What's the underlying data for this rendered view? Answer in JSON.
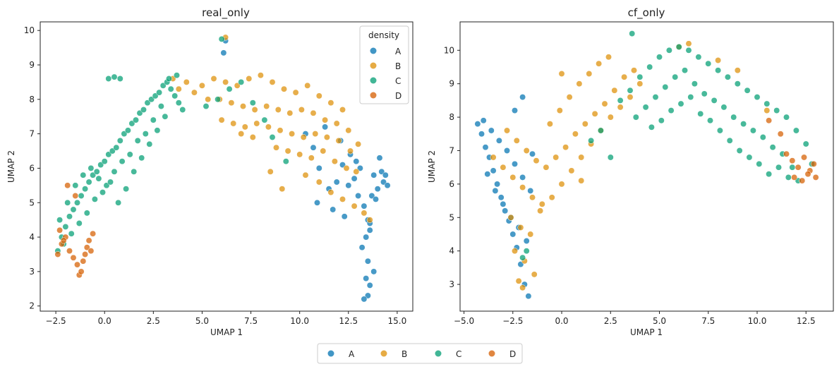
{
  "palette": {
    "A": "#0173b2",
    "B": "#de8f05",
    "C": "#029e73",
    "D": "#d55e00"
  },
  "legend": {
    "title": "density",
    "placement": "upper-right (left panel)",
    "entries": [
      "A",
      "B",
      "C",
      "D"
    ]
  },
  "figure_legend": {
    "placement": "bottom-center",
    "entries": [
      "A",
      "B",
      "C",
      "D"
    ]
  },
  "chart_data": [
    {
      "type": "scatter",
      "title": "real_only",
      "xlabel": "UMAP 1",
      "ylabel": "UMAP 2",
      "xlim": [
        -3.3,
        15.8
      ],
      "ylim": [
        1.85,
        10.25
      ],
      "xticks": [
        -2.5,
        0.0,
        2.5,
        5.0,
        7.5,
        10.0,
        12.5,
        15.0
      ],
      "xtick_labels": [
        "−2.5",
        "0.0",
        "2.5",
        "5.0",
        "7.5",
        "10.0",
        "12.5",
        "15.0"
      ],
      "yticks": [
        2,
        3,
        4,
        5,
        6,
        7,
        8,
        9,
        10
      ],
      "ytick_labels": [
        "2",
        "3",
        "4",
        "5",
        "6",
        "7",
        "8",
        "9",
        "10"
      ],
      "grid": false,
      "legend_placement": "top-right",
      "series": [
        {
          "name": "A",
          "x": [
            13.5,
            13.6,
            13.4,
            13.5,
            13.2,
            13.4,
            13.6,
            13.5,
            13.3,
            13.7,
            14.0,
            14.3,
            14.5,
            13.8,
            14.2,
            13.1,
            12.8,
            12.5,
            12.9,
            12.2,
            11.9,
            11.5,
            11.0,
            10.7,
            10.3,
            11.3,
            12.1,
            12.6,
            13.0,
            13.9,
            14.1,
            14.4,
            13.6,
            12.3,
            11.7,
            10.9,
            13.3,
            13.8,
            6.1,
            6.2
          ],
          "y": [
            2.3,
            2.6,
            2.8,
            3.3,
            3.7,
            4.0,
            4.2,
            4.5,
            4.9,
            5.2,
            5.4,
            5.6,
            5.5,
            5.8,
            5.9,
            6.0,
            5.7,
            5.5,
            6.2,
            6.1,
            5.6,
            5.4,
            6.0,
            6.6,
            7.0,
            7.2,
            6.8,
            6.4,
            5.2,
            5.1,
            6.3,
            5.8,
            4.4,
            4.6,
            4.8,
            5.0,
            2.2,
            3.0,
            9.35,
            9.7
          ]
        },
        {
          "name": "B",
          "x": [
            5.0,
            5.6,
            6.2,
            6.8,
            7.4,
            8.0,
            8.6,
            9.2,
            9.8,
            10.4,
            11.0,
            11.6,
            12.2,
            5.3,
            5.9,
            6.5,
            7.1,
            7.7,
            8.3,
            8.9,
            9.5,
            10.1,
            10.7,
            11.3,
            11.9,
            12.5,
            6.0,
            6.6,
            7.2,
            7.8,
            8.4,
            9.0,
            9.6,
            10.2,
            10.8,
            11.4,
            12.0,
            12.6,
            13.0,
            8.8,
            9.4,
            10.0,
            10.6,
            11.2,
            11.8,
            12.4,
            12.9,
            10.3,
            11.0,
            11.6,
            12.2,
            12.8,
            13.3,
            13.6,
            4.2,
            4.6,
            3.8,
            3.5,
            6.2,
            8.5,
            9.1,
            7.0,
            7.6
          ],
          "y": [
            8.4,
            8.6,
            8.5,
            8.4,
            8.6,
            8.7,
            8.5,
            8.3,
            8.2,
            8.4,
            8.1,
            7.9,
            7.7,
            8.0,
            8.0,
            7.9,
            7.8,
            7.7,
            7.8,
            7.7,
            7.6,
            7.7,
            7.6,
            7.4,
            7.3,
            7.1,
            7.4,
            7.3,
            7.2,
            7.3,
            7.2,
            7.1,
            7.0,
            6.9,
            7.0,
            6.9,
            6.8,
            6.5,
            6.7,
            6.6,
            6.5,
            6.4,
            6.3,
            6.5,
            6.2,
            6.0,
            5.9,
            5.8,
            5.6,
            5.3,
            5.1,
            4.9,
            4.7,
            4.5,
            8.5,
            8.2,
            8.3,
            8.6,
            9.8,
            5.9,
            5.4,
            7.0,
            6.9
          ]
        },
        {
          "name": "C",
          "x": [
            -2.4,
            -2.2,
            -2.0,
            -1.8,
            -1.6,
            -1.4,
            -1.2,
            -1.0,
            -0.8,
            -0.6,
            -0.4,
            -0.2,
            0.0,
            0.2,
            0.4,
            0.6,
            0.8,
            1.0,
            1.2,
            1.4,
            1.6,
            1.8,
            2.0,
            2.2,
            2.4,
            2.6,
            2.8,
            3.0,
            3.2,
            3.4,
            3.6,
            3.8,
            4.0,
            -2.3,
            -1.9,
            -1.5,
            -1.1,
            -0.7,
            -0.3,
            0.1,
            0.5,
            0.9,
            1.3,
            1.7,
            2.1,
            2.5,
            2.9,
            3.3,
            3.7,
            -2.1,
            -1.7,
            -1.3,
            -0.9,
            -0.5,
            -0.1,
            0.3,
            0.7,
            1.1,
            1.5,
            1.9,
            2.3,
            2.7,
            3.1,
            0.2,
            0.5,
            0.8,
            5.2,
            5.8,
            6.4,
            7.0,
            7.6,
            8.2,
            6.0,
            8.6,
            9.3
          ],
          "y": [
            3.6,
            4.0,
            4.3,
            4.6,
            4.8,
            5.0,
            5.2,
            5.4,
            5.6,
            5.8,
            5.9,
            6.1,
            6.2,
            6.4,
            6.5,
            6.6,
            6.8,
            7.0,
            7.1,
            7.3,
            7.4,
            7.6,
            7.7,
            7.9,
            8.0,
            8.1,
            8.2,
            8.4,
            8.5,
            8.3,
            8.1,
            7.9,
            7.7,
            4.5,
            5.0,
            5.5,
            5.8,
            6.0,
            5.7,
            5.5,
            5.9,
            6.2,
            6.4,
            6.8,
            7.0,
            7.4,
            7.8,
            8.6,
            8.7,
            3.8,
            4.1,
            4.4,
            4.7,
            5.1,
            5.3,
            5.6,
            5.0,
            5.4,
            5.9,
            6.3,
            6.7,
            7.1,
            7.5,
            8.6,
            8.65,
            8.6,
            7.8,
            8.0,
            8.3,
            8.5,
            7.9,
            7.4,
            9.75,
            6.9,
            6.2
          ]
        },
        {
          "name": "D",
          "x": [
            -2.4,
            -2.2,
            -2.0,
            -1.8,
            -1.6,
            -1.4,
            -1.3,
            -1.2,
            -1.1,
            -1.0,
            -0.9,
            -0.8,
            -0.7,
            -1.9,
            -1.5,
            -2.3,
            -2.1,
            -0.6
          ],
          "y": [
            3.5,
            3.8,
            4.0,
            3.6,
            3.4,
            3.2,
            2.9,
            3.0,
            3.3,
            3.5,
            3.7,
            3.9,
            3.6,
            5.5,
            5.2,
            4.2,
            3.9,
            4.1
          ]
        }
      ]
    },
    {
      "type": "scatter",
      "title": "cf_only",
      "xlabel": "UMAP 1",
      "ylabel": "UMAP 2",
      "xlim": [
        -5.2,
        13.9
      ],
      "ylim": [
        2.2,
        10.85
      ],
      "xticks": [
        -5.0,
        -2.5,
        0.0,
        2.5,
        5.0,
        7.5,
        10.0,
        12.5
      ],
      "xtick_labels": [
        "−5.0",
        "−2.5",
        "0.0",
        "2.5",
        "5.0",
        "7.5",
        "10.0",
        "12.5"
      ],
      "yticks": [
        3,
        4,
        5,
        6,
        7,
        8,
        9,
        10
      ],
      "ytick_labels": [
        "3",
        "4",
        "5",
        "6",
        "7",
        "8",
        "9",
        "10"
      ],
      "grid": false,
      "series": [
        {
          "name": "A",
          "x": [
            -4.3,
            -4.1,
            -3.9,
            -3.7,
            -3.5,
            -3.3,
            -3.1,
            -2.9,
            -2.7,
            -2.5,
            -2.3,
            -2.1,
            -1.9,
            -1.7,
            -4.0,
            -3.6,
            -3.2,
            -2.8,
            -2.4,
            -2.0,
            -1.6,
            -3.8,
            -3.4,
            -3.0,
            -2.6,
            -2.2,
            -1.8,
            -2.0,
            -2.4,
            -1.5
          ],
          "y": [
            7.8,
            7.5,
            7.1,
            6.8,
            6.4,
            6.0,
            5.6,
            5.2,
            4.9,
            4.5,
            4.1,
            3.6,
            3.0,
            2.65,
            7.9,
            7.6,
            7.3,
            7.0,
            6.6,
            6.2,
            5.8,
            6.3,
            5.8,
            5.4,
            5.0,
            4.7,
            4.3,
            8.6,
            8.2,
            6.9
          ]
        },
        {
          "name": "B",
          "x": [
            -3.5,
            -3.0,
            -2.5,
            -2.0,
            -1.5,
            -1.0,
            -0.5,
            0.0,
            0.5,
            1.0,
            1.5,
            2.0,
            2.5,
            3.0,
            3.5,
            4.0,
            -2.8,
            -2.3,
            -1.8,
            -1.3,
            -0.8,
            -0.3,
            0.2,
            0.7,
            1.2,
            1.7,
            2.2,
            2.7,
            3.2,
            3.7,
            -2.6,
            -2.1,
            -1.6,
            -1.1,
            -0.6,
            -0.1,
            0.4,
            0.9,
            1.4,
            1.9,
            2.4,
            -2.4,
            -1.9,
            -1.4,
            -2.2,
            -2.0,
            6.0,
            6.5,
            8.0,
            9.0,
            10.5,
            0.0,
            1.0
          ],
          "y": [
            6.8,
            6.5,
            6.2,
            5.9,
            5.6,
            5.4,
            5.6,
            6.0,
            6.4,
            6.8,
            7.2,
            7.6,
            8.0,
            8.3,
            8.6,
            9.0,
            7.6,
            7.3,
            7.0,
            6.7,
            6.5,
            6.8,
            7.1,
            7.5,
            7.8,
            8.1,
            8.4,
            8.8,
            9.2,
            9.4,
            5.0,
            4.7,
            4.5,
            5.2,
            7.8,
            8.2,
            8.6,
            9.0,
            9.3,
            9.6,
            9.8,
            4.0,
            3.7,
            3.3,
            3.1,
            2.9,
            10.1,
            10.2,
            9.7,
            9.4,
            8.2,
            9.3,
            6.1
          ]
        },
        {
          "name": "C",
          "x": [
            3.0,
            3.5,
            4.0,
            4.5,
            5.0,
            5.5,
            6.0,
            6.5,
            7.0,
            7.5,
            8.0,
            8.5,
            9.0,
            9.5,
            10.0,
            10.5,
            11.0,
            11.5,
            12.0,
            12.5,
            3.8,
            4.3,
            4.8,
            5.3,
            5.8,
            6.3,
            6.8,
            7.3,
            7.8,
            8.3,
            8.8,
            9.3,
            9.8,
            10.3,
            10.8,
            11.3,
            11.8,
            4.6,
            5.1,
            5.6,
            6.1,
            6.6,
            7.1,
            7.6,
            8.1,
            8.6,
            9.1,
            9.6,
            10.1,
            10.6,
            11.1,
            11.6,
            12.1,
            1.5,
            2.0,
            2.5,
            -1.8,
            -2.0,
            3.6,
            12.8
          ],
          "y": [
            8.5,
            8.8,
            9.2,
            9.5,
            9.8,
            10.0,
            10.1,
            10.0,
            9.8,
            9.6,
            9.4,
            9.2,
            9.0,
            8.8,
            8.6,
            8.4,
            8.2,
            8.0,
            7.6,
            7.2,
            8.0,
            8.3,
            8.6,
            8.9,
            9.2,
            9.4,
            9.0,
            8.7,
            8.5,
            8.3,
            8.0,
            7.8,
            7.6,
            7.4,
            7.1,
            6.9,
            6.5,
            7.7,
            7.9,
            8.2,
            8.4,
            8.6,
            8.1,
            7.9,
            7.6,
            7.3,
            7.0,
            6.8,
            6.6,
            6.3,
            6.5,
            6.2,
            6.1,
            7.3,
            7.6,
            6.8,
            4.0,
            3.8,
            10.5,
            6.6
          ]
        },
        {
          "name": "D",
          "x": [
            11.5,
            11.8,
            12.1,
            12.4,
            12.7,
            13.0,
            12.3,
            12.6,
            12.9,
            11.9,
            11.2,
            10.6
          ],
          "y": [
            6.9,
            6.7,
            6.5,
            6.8,
            6.4,
            6.2,
            6.1,
            6.3,
            6.6,
            6.2,
            7.5,
            7.9
          ]
        }
      ]
    }
  ]
}
